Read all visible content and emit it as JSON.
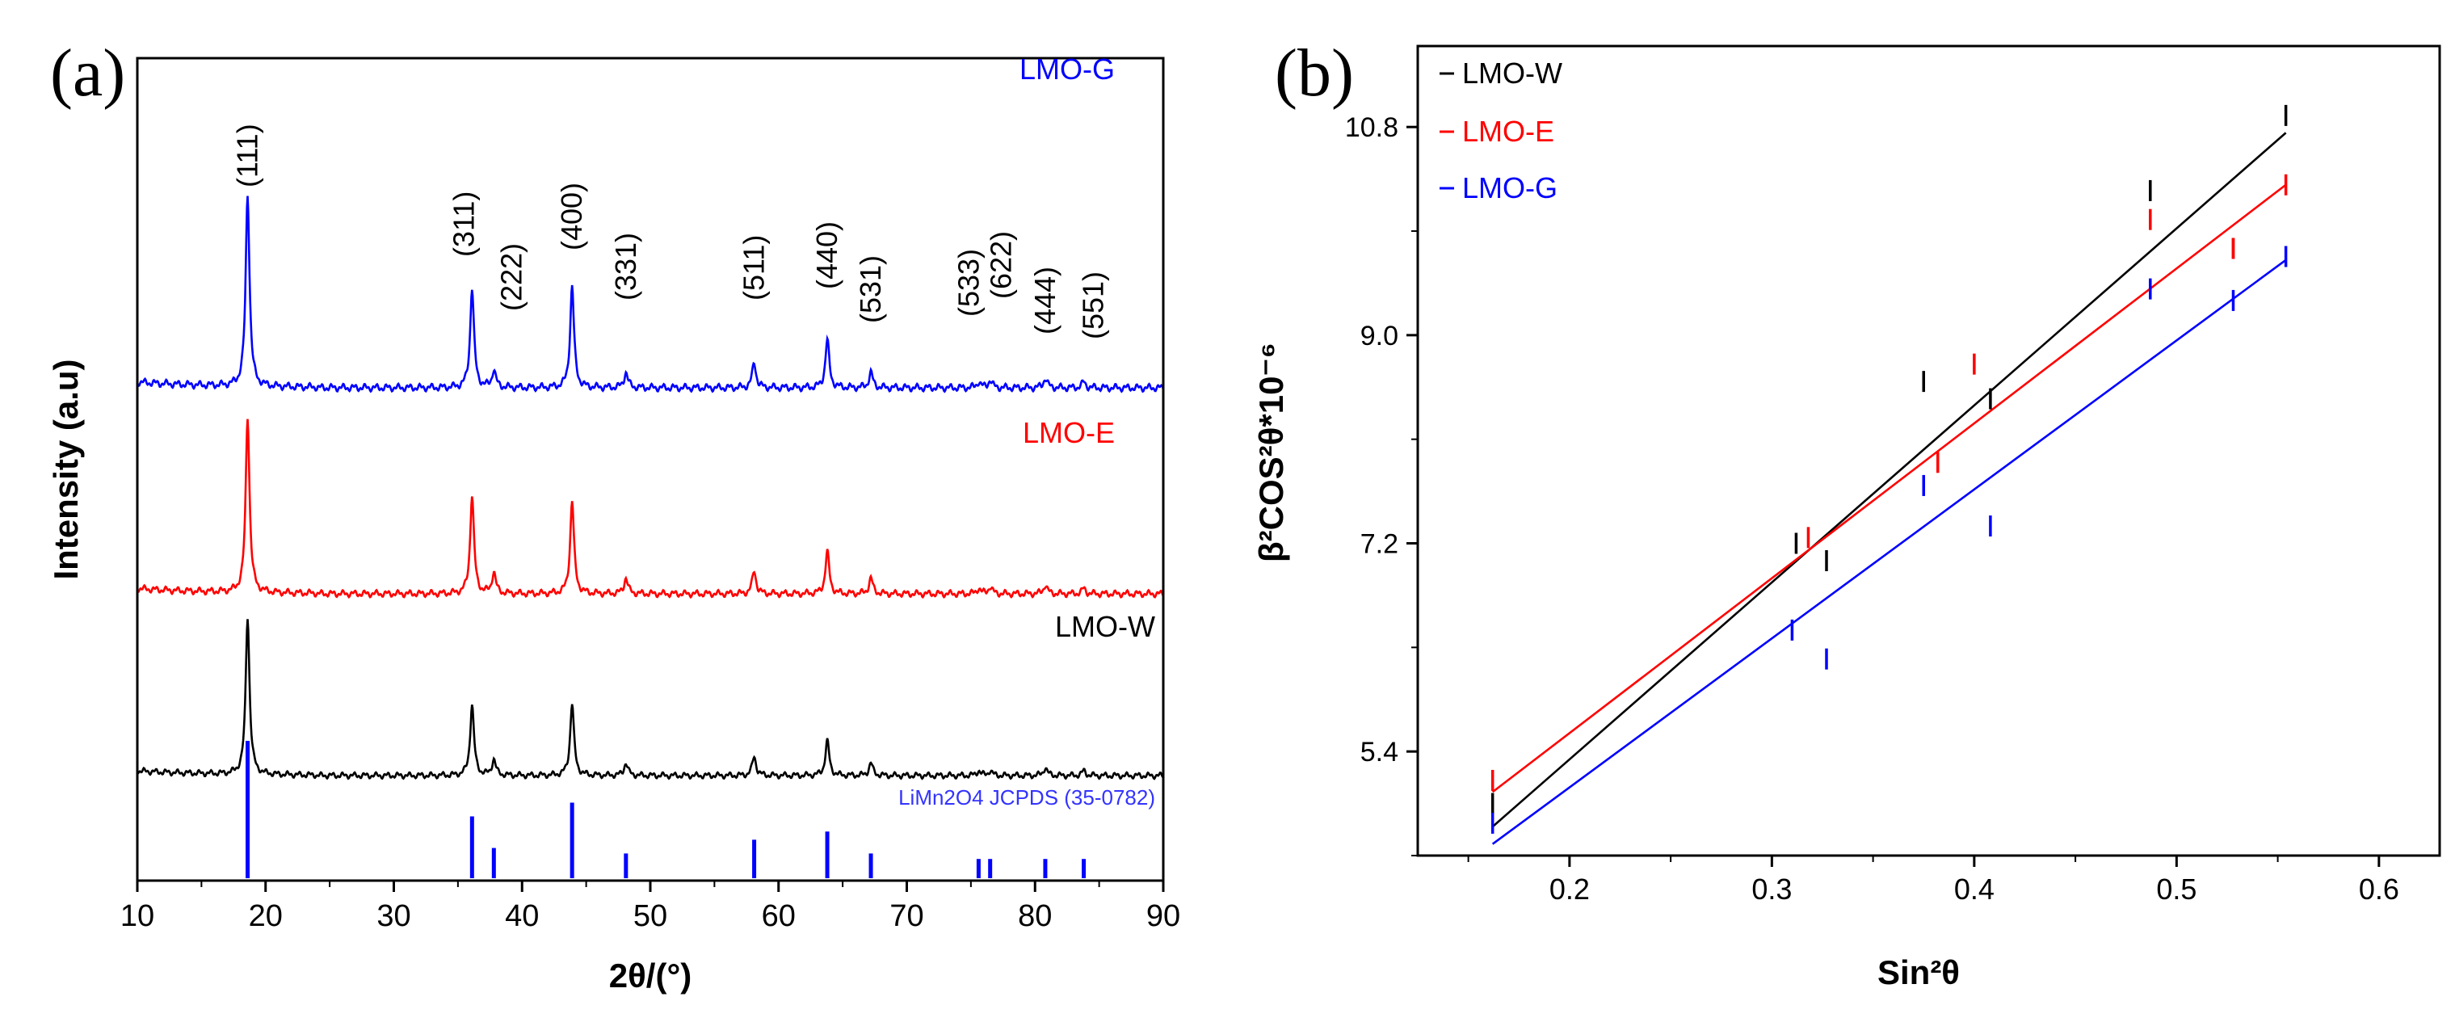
{
  "chart_data": [
    {
      "panel": "(a)",
      "type": "line",
      "title": "",
      "xlabel": "2θ/(°)",
      "ylabel": "Intensity (a.u)",
      "xlim": [
        10,
        90
      ],
      "xticks": [
        10,
        20,
        30,
        40,
        50,
        60,
        70,
        80,
        90
      ],
      "grid": false,
      "peak_positions": [
        18.6,
        36.1,
        37.8,
        43.9,
        48.1,
        58.1,
        63.8,
        67.2,
        75.6,
        76.5,
        80.8,
        83.8
      ],
      "peak_labels": [
        "(111)",
        "(311)",
        "(222)",
        "(400)",
        "(331)",
        "(511)",
        "(440)",
        "(531)",
        "(533)",
        "(622)",
        "(444)",
        "(551)"
      ],
      "series": [
        {
          "name": "LMO-G",
          "color": "#0000ff",
          "peak_intensities": [
            1.0,
            0.52,
            0.09,
            0.53,
            0.08,
            0.13,
            0.25,
            0.08,
            0.03,
            0.04,
            0.05,
            0.03
          ]
        },
        {
          "name": "LMO-E",
          "color": "#ff0000",
          "peak_intensities": [
            1.0,
            0.56,
            0.12,
            0.53,
            0.09,
            0.13,
            0.24,
            0.09,
            0.03,
            0.04,
            0.05,
            0.03
          ]
        },
        {
          "name": "LMO-W",
          "color": "#000000",
          "peak_intensities": [
            1.0,
            0.45,
            0.1,
            0.46,
            0.08,
            0.12,
            0.22,
            0.08,
            0.03,
            0.03,
            0.05,
            0.03
          ]
        }
      ],
      "reference": {
        "name": "LiMn2O4 JCPDS (35-0782)",
        "color": "#0000ff",
        "positions": [
          18.6,
          36.1,
          37.8,
          43.9,
          48.1,
          58.1,
          63.8,
          67.2,
          75.6,
          76.5,
          80.8,
          83.8
        ],
        "intensities": [
          1.0,
          0.45,
          0.22,
          0.55,
          0.18,
          0.28,
          0.34,
          0.18,
          0.14,
          0.14,
          0.14,
          0.14
        ]
      }
    },
    {
      "panel": "(b)",
      "type": "scatter",
      "title": "",
      "xlabel": "Sin²θ",
      "ylabel": "β²COS²θ*10⁻⁶",
      "xlim": [
        0.125,
        0.63
      ],
      "ylim": [
        4.5,
        11.5
      ],
      "xticks": [
        0.2,
        0.3,
        0.4,
        0.5,
        0.6
      ],
      "yticks": [
        5.4,
        7.2,
        9.0,
        10.8
      ],
      "grid": false,
      "legend_position": "top-left",
      "series": [
        {
          "name": "LMO-W",
          "color": "#000000",
          "x": [
            0.162,
            0.312,
            0.327,
            0.375,
            0.408,
            0.487,
            0.528,
            0.554
          ],
          "y": [
            4.95,
            7.2,
            7.05,
            8.6,
            8.45,
            10.25,
            9.75,
            10.9
          ],
          "fit": {
            "x": [
              0.162,
              0.554
            ],
            "y": [
              4.75,
              10.75
            ]
          }
        },
        {
          "name": "LMO-E",
          "color": "#ff0000",
          "x": [
            0.162,
            0.318,
            0.382,
            0.4,
            0.487,
            0.528,
            0.554
          ],
          "y": [
            5.15,
            7.25,
            7.9,
            8.75,
            10.0,
            9.75,
            10.3
          ],
          "fit": {
            "x": [
              0.162,
              0.554
            ],
            "y": [
              5.05,
              10.3
            ]
          }
        },
        {
          "name": "LMO-G",
          "color": "#0000ff",
          "x": [
            0.162,
            0.31,
            0.327,
            0.375,
            0.408,
            0.487,
            0.528,
            0.554
          ],
          "y": [
            4.78,
            6.45,
            6.2,
            7.7,
            7.35,
            9.4,
            9.3,
            9.68
          ],
          "fit": {
            "x": [
              0.162,
              0.554
            ],
            "y": [
              4.6,
              9.65
            ]
          }
        }
      ]
    }
  ]
}
